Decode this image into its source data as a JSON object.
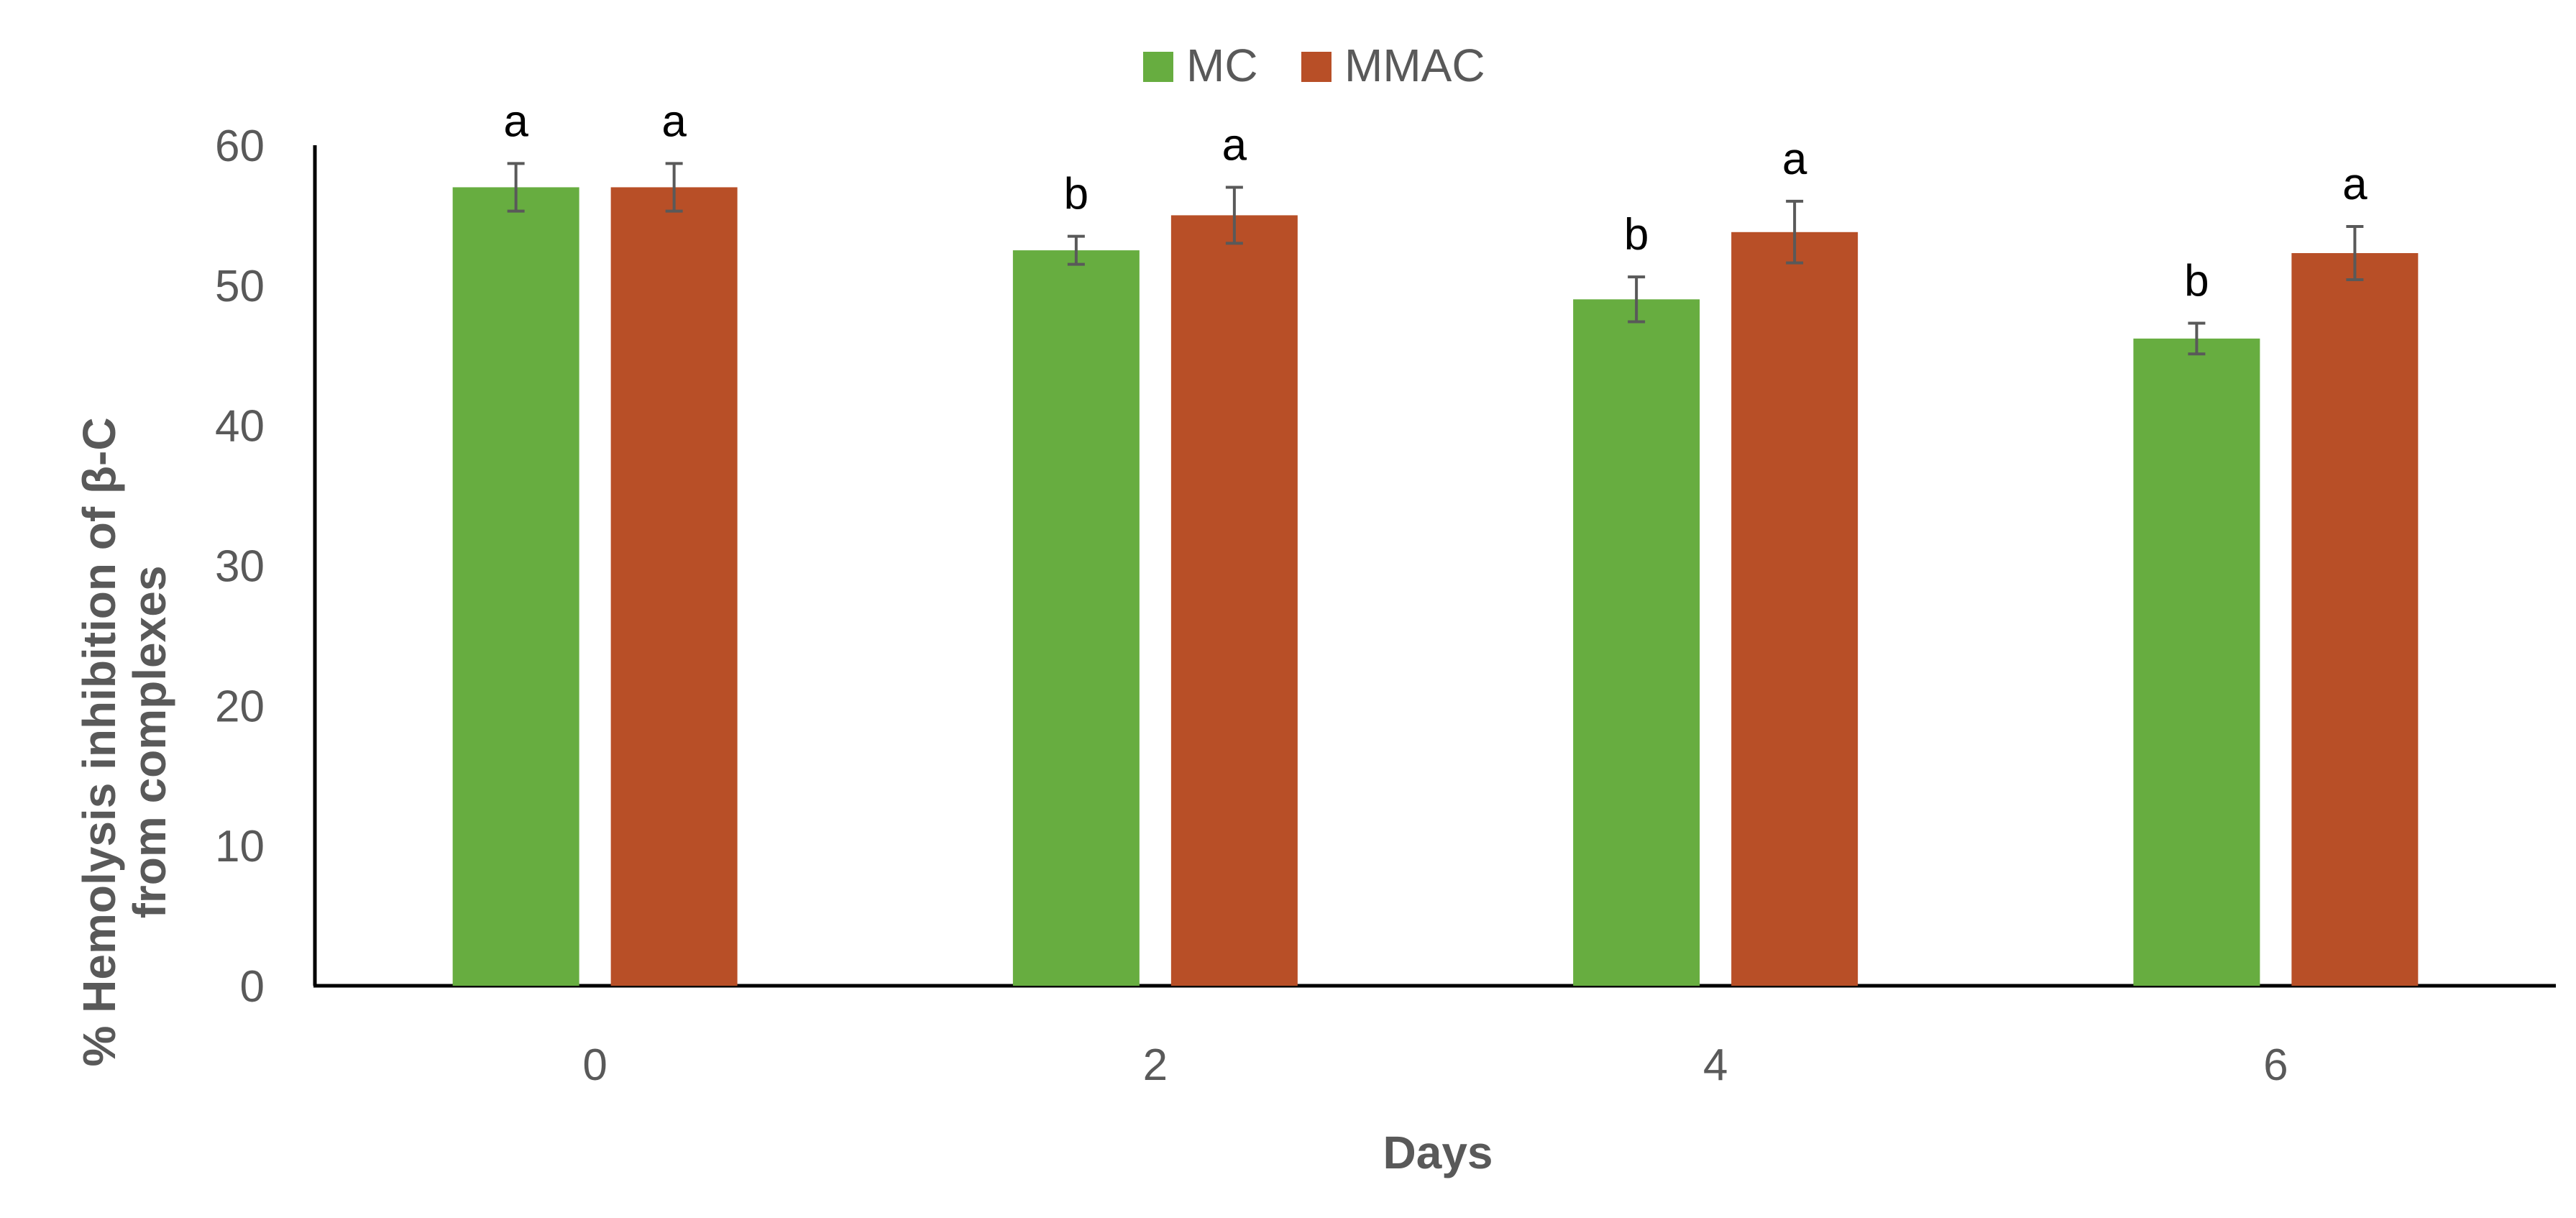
{
  "chart_data": {
    "type": "bar",
    "title": "",
    "xlabel": "Days",
    "ylabel_lines": [
      "% Hemolysis inhibition of β-C",
      "from complexes"
    ],
    "categories": [
      "0",
      "2",
      "4",
      "6"
    ],
    "ylim": [
      0,
      60
    ],
    "yticks": [
      "0",
      "10",
      "20",
      "30",
      "40",
      "50",
      "60"
    ],
    "legend_position": "top-center",
    "grid": false,
    "series": [
      {
        "name": "MC",
        "color": "#67AD40",
        "values": [
          57.0,
          52.5,
          49.0,
          46.2
        ],
        "errors": [
          1.7,
          1.0,
          1.6,
          1.1
        ],
        "labels": [
          "a",
          "b",
          "b",
          "b"
        ]
      },
      {
        "name": "MMAC",
        "color": "#B84F27",
        "values": [
          57.0,
          55.0,
          53.8,
          52.3
        ],
        "errors": [
          1.7,
          2.0,
          2.2,
          1.9
        ],
        "labels": [
          "a",
          "a",
          "a",
          "a"
        ]
      }
    ]
  }
}
